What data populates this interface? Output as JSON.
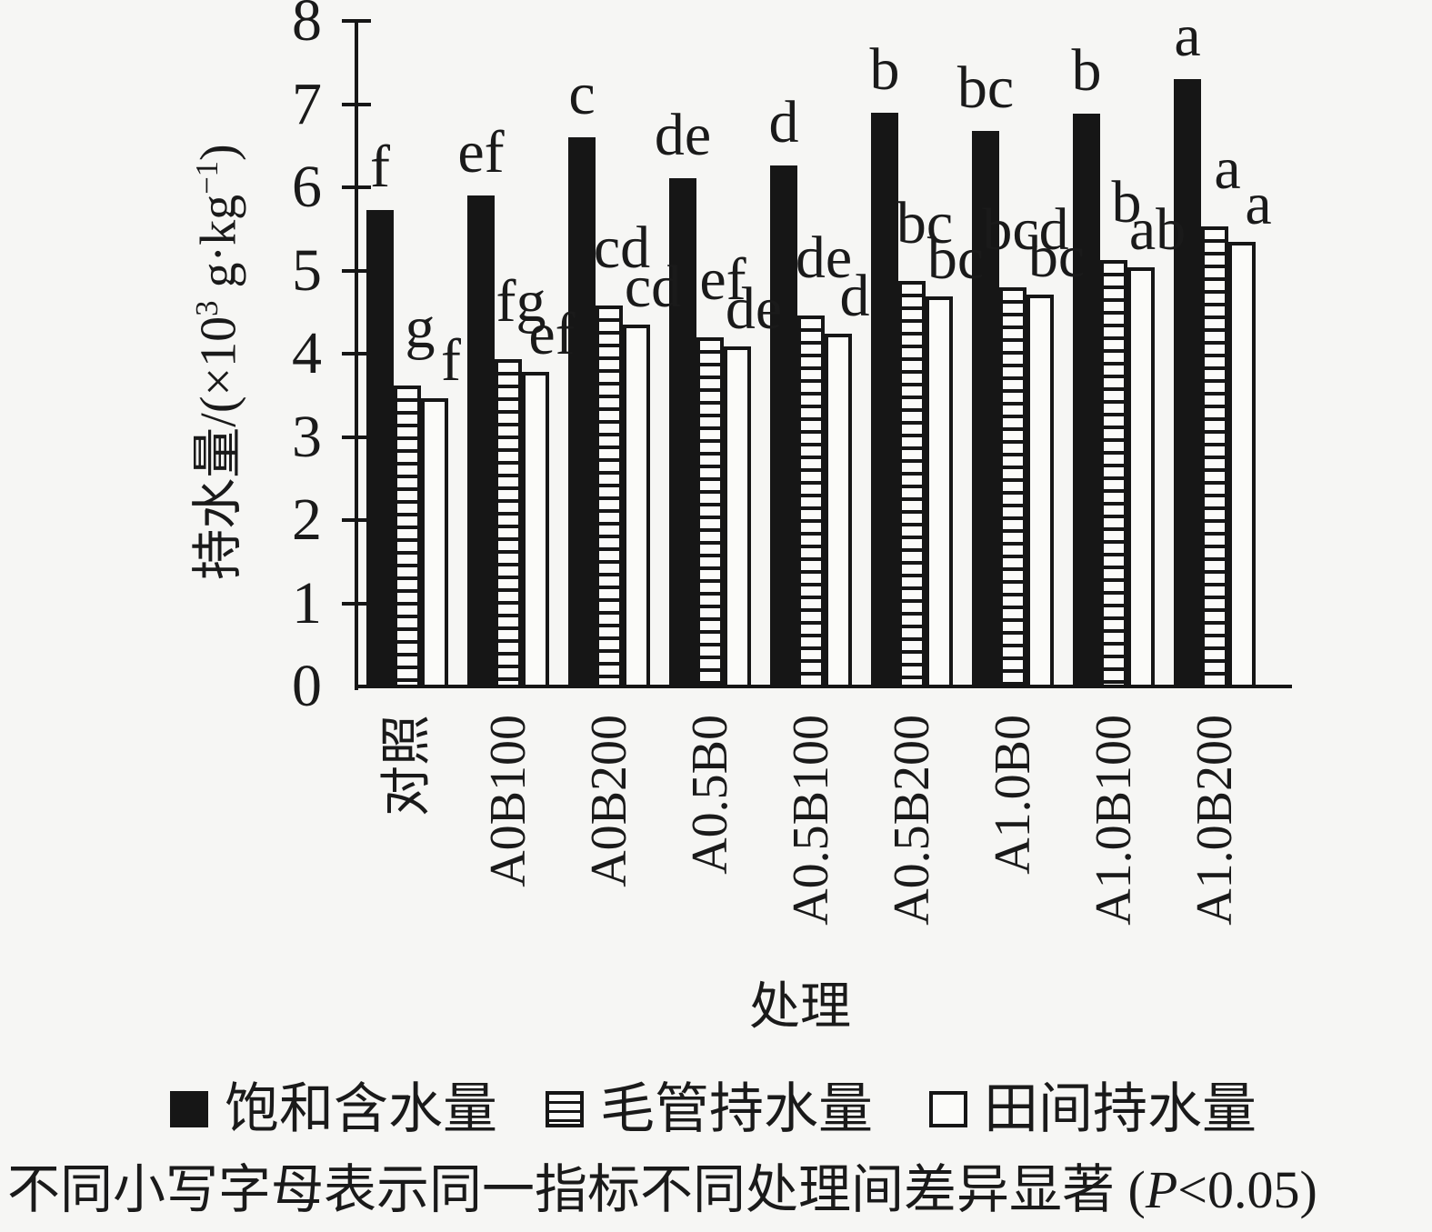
{
  "chart_data": {
    "type": "bar",
    "categories": [
      "对照",
      "A0B100",
      "A0B200",
      "A0.5B0",
      "A0.5B100",
      "A0.5B200",
      "A1.0B0",
      "A1.0B100",
      "A1.0B200"
    ],
    "series": [
      {
        "name": "饱和含水量",
        "pattern": "solid",
        "values": [
          5.73,
          5.9,
          6.6,
          6.11,
          6.26,
          6.9,
          6.68,
          6.88,
          7.3
        ],
        "sig_letters": [
          "f",
          "ef",
          "c",
          "de",
          "d",
          "b",
          "bc",
          "b",
          "a"
        ]
      },
      {
        "name": "毛管持水量",
        "pattern": "h-stripes",
        "values": [
          3.62,
          3.93,
          4.58,
          4.2,
          4.46,
          4.87,
          4.8,
          5.13,
          5.53
        ],
        "sig_letters": [
          "g",
          "fg",
          "cd",
          "ef",
          "de",
          "bc",
          "bcd",
          "b",
          "a"
        ]
      },
      {
        "name": "田间持水量",
        "pattern": "hollow",
        "values": [
          3.46,
          3.78,
          4.35,
          4.09,
          4.24,
          4.69,
          4.71,
          5.04,
          5.34
        ],
        "sig_letters": [
          "f",
          "ef",
          "cd",
          "de",
          "d",
          "bc",
          "bc",
          "ab",
          "a"
        ]
      }
    ],
    "xlabel": "处理",
    "ylabel": "持水量/(×10³ g·kg⁻¹)",
    "ylabel_parts": {
      "base1": "持水量/(×10",
      "sup1": "3",
      "base2": " g·kg",
      "sup2": "−1",
      "base3": ")"
    },
    "ylim": [
      0,
      8
    ],
    "yticks": [
      "0",
      "1",
      "2",
      "3",
      "4",
      "5",
      "6",
      "7",
      "8"
    ],
    "legend_position": "bottom",
    "grid": false
  },
  "note": {
    "prefix": "不同小写字母表示同一指标不同处理间差异显著 (",
    "p": "P",
    "suffix": "<0.05)"
  },
  "colors": {
    "ink": "#1a1a1a",
    "background": "#f6f6f4",
    "bar_fill_dark": "#161616",
    "bar_fill_light": "#fbfbf9"
  }
}
